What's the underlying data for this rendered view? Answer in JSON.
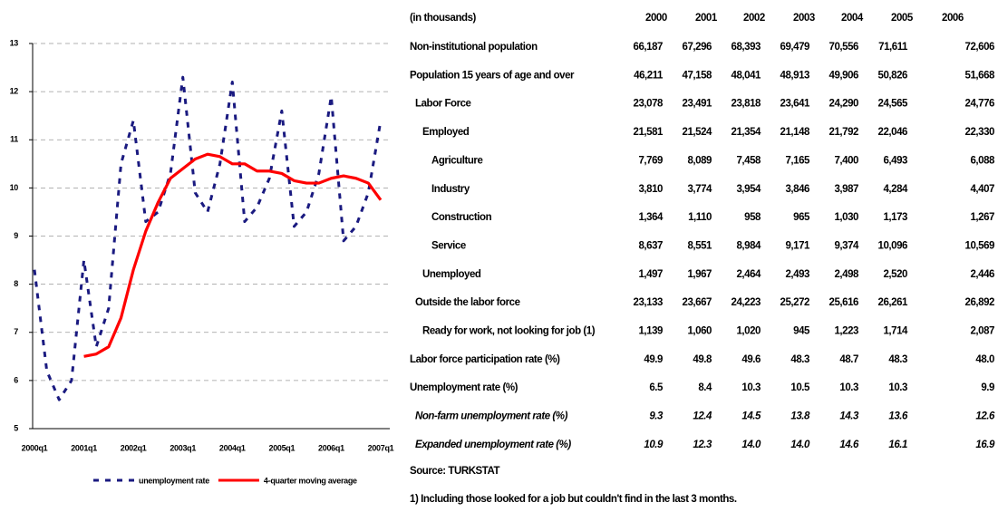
{
  "chart_data": {
    "type": "line",
    "categories": [
      "2000q1",
      null,
      null,
      null,
      "2001q1",
      null,
      null,
      null,
      "2002q1",
      null,
      null,
      null,
      "2003q1",
      null,
      null,
      null,
      "2004q1",
      null,
      null,
      null,
      "2005q1",
      null,
      null,
      null,
      "2006q1",
      null,
      null,
      null,
      "2007q1"
    ],
    "series": [
      {
        "name": "unemployment rate",
        "color": "#1a1a80",
        "dashed": true,
        "values": [
          8.3,
          6.2,
          5.6,
          6.0,
          8.5,
          6.7,
          7.5,
          10.5,
          11.4,
          9.3,
          9.5,
          10.3,
          12.3,
          9.9,
          9.5,
          10.5,
          12.2,
          9.3,
          9.6,
          10.2,
          11.6,
          9.2,
          9.5,
          10.3,
          11.9,
          8.9,
          9.2,
          9.9,
          11.4
        ]
      },
      {
        "name": "4-quarter moving average",
        "color": "#ff0000",
        "dashed": false,
        "values": [
          null,
          null,
          null,
          null,
          6.5,
          6.55,
          6.7,
          7.3,
          8.3,
          9.1,
          9.7,
          10.2,
          10.4,
          10.6,
          10.7,
          10.65,
          10.5,
          10.5,
          10.35,
          10.35,
          10.3,
          10.15,
          10.1,
          10.1,
          10.2,
          10.25,
          10.2,
          10.1,
          9.75
        ]
      }
    ],
    "ylim": [
      5,
      13
    ],
    "yticks": [
      5,
      6,
      7,
      8,
      9,
      10,
      11,
      12,
      13
    ],
    "grid": true,
    "legend": "bottom"
  },
  "table": {
    "header": [
      "(in thousands)",
      "2000",
      "2001",
      "2002",
      "2003",
      "2004",
      "2005",
      "2006"
    ],
    "rows": [
      [
        "Non-institutional population",
        "66,187",
        "67,296",
        "68,393",
        "69,479",
        "70,556",
        "71,611",
        "72,606"
      ],
      [
        "Population 15 years of age and over",
        "46,211",
        "47,158",
        "48,041",
        "48,913",
        "49,906",
        "50,826",
        "51,668"
      ],
      [
        "Labor Force",
        "23,078",
        "23,491",
        "23,818",
        "23,641",
        "24,290",
        "24,565",
        "24,776"
      ],
      [
        "Employed",
        "21,581",
        "21,524",
        "21,354",
        "21,148",
        "21,792",
        "22,046",
        "22,330"
      ],
      [
        "Agriculture",
        "7,769",
        "8,089",
        "7,458",
        "7,165",
        "7,400",
        "6,493",
        "6,088"
      ],
      [
        "Industry",
        "3,810",
        "3,774",
        "3,954",
        "3,846",
        "3,987",
        "4,284",
        "4,407"
      ],
      [
        "Construction",
        "1,364",
        "1,110",
        "958",
        "965",
        "1,030",
        "1,173",
        "1,267"
      ],
      [
        "Service",
        "8,637",
        "8,551",
        "8,984",
        "9,171",
        "9,374",
        "10,096",
        "10,569"
      ],
      [
        "Unemployed",
        "1,497",
        "1,967",
        "2,464",
        "2,493",
        "2,498",
        "2,520",
        "2,446"
      ],
      [
        "Outside the labor force",
        "23,133",
        "23,667",
        "24,223",
        "25,272",
        "25,616",
        "26,261",
        "26,892"
      ],
      [
        "Ready for work, not looking for job (1)",
        "1,139",
        "1,060",
        "1,020",
        "945",
        "1,223",
        "1,714",
        "2,087"
      ],
      [
        "Labor force participation rate (%)",
        "49.9",
        "49.8",
        "49.6",
        "48.3",
        "48.7",
        "48.3",
        "48.0"
      ],
      [
        "Unemployment rate (%)",
        "6.5",
        "8.4",
        "10.3",
        "10.5",
        "10.3",
        "10.3",
        "9.9"
      ],
      [
        "Non-farm unemployment rate (%)",
        "9.3",
        "12.4",
        "14.5",
        "13.8",
        "14.3",
        "13.6",
        "12.6"
      ],
      [
        "Expanded unemployment rate (%)",
        "10.9",
        "12.3",
        "14.0",
        "14.0",
        "14.6",
        "16.1",
        "16.9"
      ]
    ],
    "source": "Source: TURKSTAT",
    "note": "1) Including those looked for a job but couldn't find in the last 3 months."
  }
}
